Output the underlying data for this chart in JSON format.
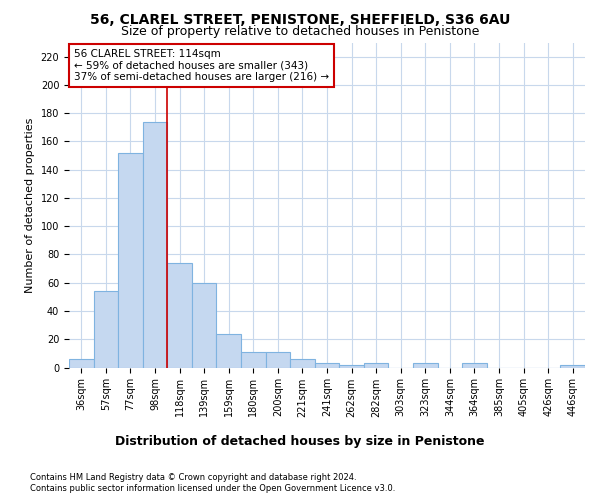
{
  "title": "56, CLAREL STREET, PENISTONE, SHEFFIELD, S36 6AU",
  "subtitle": "Size of property relative to detached houses in Penistone",
  "xlabel": "Distribution of detached houses by size in Penistone",
  "ylabel": "Number of detached properties",
  "categories": [
    "36sqm",
    "57sqm",
    "77sqm",
    "98sqm",
    "118sqm",
    "139sqm",
    "159sqm",
    "180sqm",
    "200sqm",
    "221sqm",
    "241sqm",
    "262sqm",
    "282sqm",
    "303sqm",
    "323sqm",
    "344sqm",
    "364sqm",
    "385sqm",
    "405sqm",
    "426sqm",
    "446sqm"
  ],
  "values": [
    6,
    54,
    152,
    174,
    74,
    60,
    24,
    11,
    11,
    6,
    3,
    2,
    3,
    0,
    3,
    0,
    3,
    0,
    0,
    0,
    2
  ],
  "bar_color": "#c5d8f0",
  "bar_edge_color": "#7fb3e0",
  "vline_color": "#cc0000",
  "vline_x": 3.5,
  "annotation_title": "56 CLAREL STREET: 114sqm",
  "annotation_line1": "← 59% of detached houses are smaller (343)",
  "annotation_line2": "37% of semi-detached houses are larger (216) →",
  "annotation_box_color": "white",
  "annotation_box_edge_color": "#cc0000",
  "ylim": [
    0,
    230
  ],
  "yticks": [
    0,
    20,
    40,
    60,
    80,
    100,
    120,
    140,
    160,
    180,
    200,
    220
  ],
  "footnote1": "Contains HM Land Registry data © Crown copyright and database right 2024.",
  "footnote2": "Contains public sector information licensed under the Open Government Licence v3.0.",
  "background_color": "#ffffff",
  "grid_color": "#c8d8ec",
  "title_fontsize": 10,
  "subtitle_fontsize": 9,
  "tick_fontsize": 7,
  "ylabel_fontsize": 8,
  "xlabel_fontsize": 9,
  "footnote_fontsize": 6
}
